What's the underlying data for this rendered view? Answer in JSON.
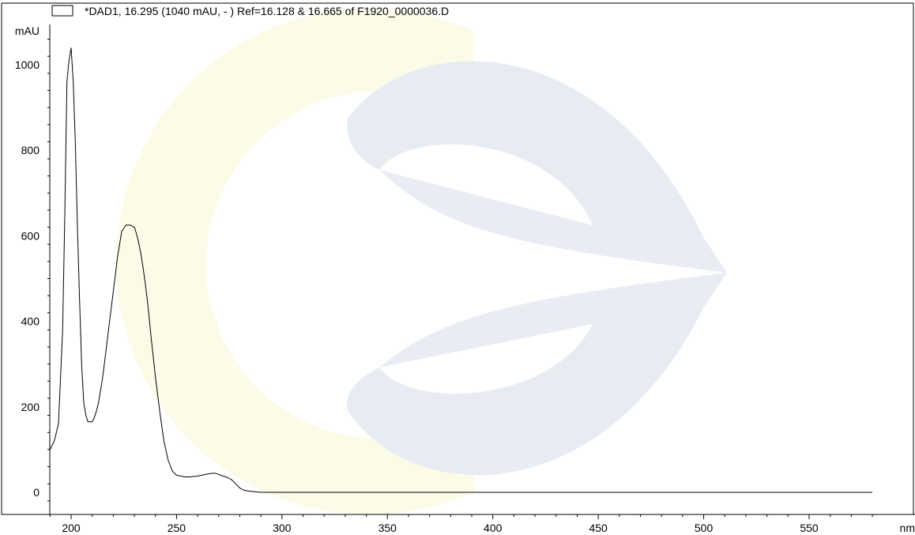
{
  "chart_data": {
    "type": "line",
    "legend_text": "*DAD1, 16.295 (1040 mAU, - ) Ref=16.128 & 16.665 of F1920_0000036.D",
    "legend_placement": "top-left",
    "ylabel": "mAU",
    "xlabel": "nm",
    "xlim": [
      190,
      580
    ],
    "ylim": [
      -40,
      1090
    ],
    "x_ticks": [
      200,
      250,
      300,
      350,
      400,
      450,
      500,
      550
    ],
    "y_ticks": [
      0,
      200,
      400,
      600,
      800,
      1000
    ],
    "grid": false,
    "line_color": "#000000",
    "watermark_colors": [
      "#e7ebf2",
      "#fbfbe8"
    ],
    "series": [
      {
        "x": [
          190,
          192,
          194,
          196,
          197,
          198,
          199,
          200,
          201,
          202,
          203,
          204,
          205,
          206,
          207,
          208,
          209,
          210,
          211,
          212,
          213,
          214,
          215,
          216,
          218,
          220,
          222,
          224,
          226,
          228,
          230,
          231,
          232,
          233,
          234,
          235,
          236,
          237,
          238,
          240,
          242,
          244,
          246,
          248,
          250,
          252,
          254,
          256,
          258,
          260,
          262,
          264,
          266,
          268,
          270,
          272,
          274,
          276,
          278,
          280,
          282,
          284,
          286,
          288,
          290,
          292,
          294,
          296,
          300,
          305,
          310,
          320,
          350,
          400,
          450,
          500,
          550,
          580
        ],
        "y": [
          100,
          120,
          160,
          380,
          650,
          960,
          1010,
          1040,
          960,
          820,
          620,
          450,
          300,
          210,
          180,
          165,
          165,
          165,
          175,
          190,
          210,
          240,
          270,
          310,
          390,
          470,
          550,
          610,
          625,
          625,
          620,
          605,
          585,
          560,
          530,
          495,
          455,
          410,
          360,
          270,
          190,
          120,
          75,
          50,
          40,
          38,
          36,
          36,
          37,
          38,
          40,
          42,
          44,
          45,
          42,
          38,
          35,
          30,
          20,
          10,
          5,
          3,
          2,
          1,
          0,
          0,
          0,
          0,
          0,
          0,
          0,
          0,
          0,
          0,
          0,
          0,
          0,
          0
        ]
      }
    ]
  }
}
